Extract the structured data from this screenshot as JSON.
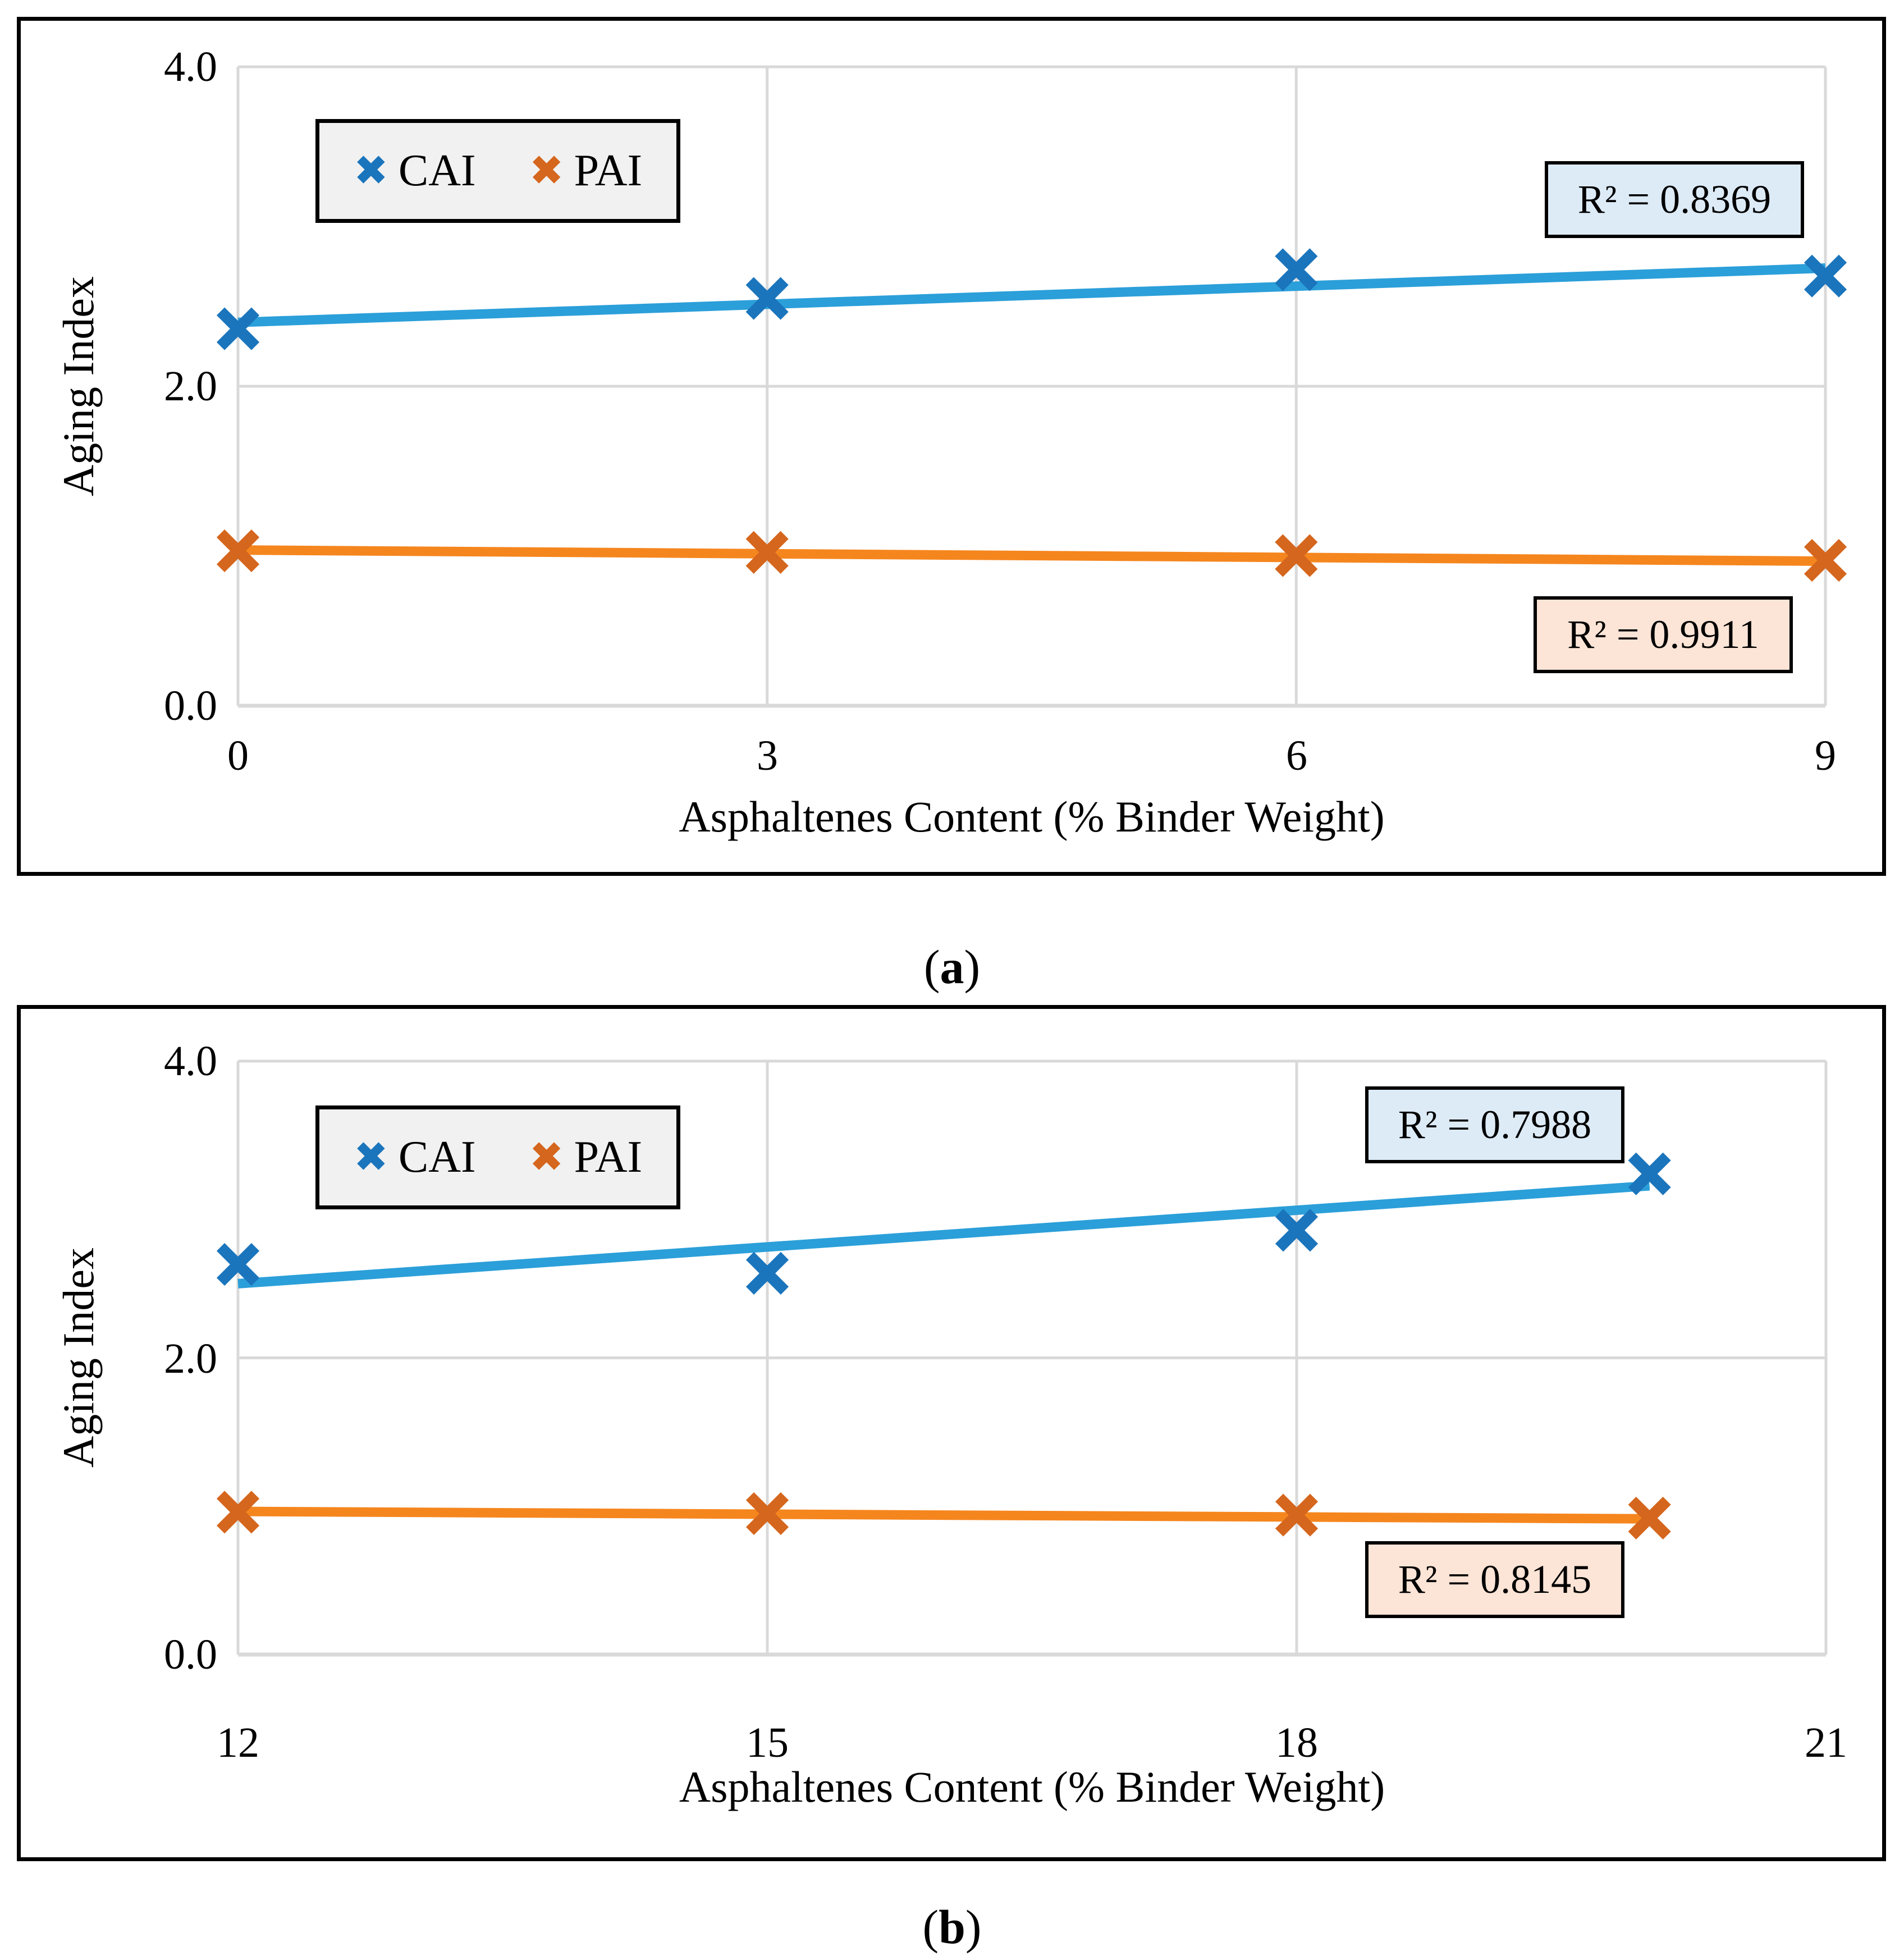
{
  "captions": [
    {
      "open": "(",
      "letter": "a",
      "close": ")"
    },
    {
      "open": "(",
      "letter": "b",
      "close": ")"
    }
  ],
  "chart_data": [
    {
      "id": "a",
      "type": "scatter",
      "title": "",
      "xlabel": "Asphaltenes Content (% Binder Weight)",
      "ylabel": "Aging Index",
      "xlim": [
        0,
        9
      ],
      "ylim": [
        0,
        4
      ],
      "x_ticks": [
        0,
        3,
        6,
        9
      ],
      "x_tick_labels": [
        "0",
        "3",
        "6",
        "9"
      ],
      "y_ticks": [
        0,
        2,
        4
      ],
      "y_tick_labels": [
        "0.0",
        "2.0",
        "4.0"
      ],
      "grid": "on",
      "gridline_color": "#D9D9D9",
      "legend": {
        "position": "top-left-inside",
        "icon": "✖",
        "items": [
          {
            "label": "CAI",
            "color": "#1B75BC"
          },
          {
            "label": "PAI",
            "color": "#D5661D"
          }
        ]
      },
      "series": [
        {
          "name": "CAI",
          "marker": "x",
          "marker_color": "#1B75BC",
          "line_color": "#2B9FD9",
          "x": [
            0,
            3,
            6,
            9
          ],
          "y": [
            2.36,
            2.55,
            2.73,
            2.69
          ],
          "trend": {
            "x": [
              0,
              9
            ],
            "y": [
              2.4,
              2.74
            ]
          },
          "r2_value": 0.8369,
          "r2_label": "R² = 0.8369",
          "r2_box_color": "#DDEBF7"
        },
        {
          "name": "PAI",
          "marker": "x",
          "marker_color": "#D5661D",
          "line_color": "#F5861E",
          "x": [
            0,
            3,
            6,
            9
          ],
          "y": [
            0.97,
            0.96,
            0.94,
            0.91
          ],
          "trend": {
            "x": [
              0,
              9
            ],
            "y": [
              0.975,
              0.905
            ]
          },
          "r2_value": 0.9911,
          "r2_label": "R² = 0.9911",
          "r2_box_color": "#FCE4D6"
        }
      ]
    },
    {
      "id": "b",
      "type": "scatter",
      "title": "",
      "xlabel": "Asphaltenes Content (% Binder Weight)",
      "ylabel": "Aging Index",
      "xlim": [
        12,
        21
      ],
      "ylim": [
        0,
        4
      ],
      "x_ticks": [
        12,
        15,
        18,
        21
      ],
      "x_tick_labels": [
        "12",
        "15",
        "18",
        "21"
      ],
      "y_ticks": [
        0,
        2,
        4
      ],
      "y_tick_labels": [
        "0.0",
        "2.0",
        "4.0"
      ],
      "grid": "on",
      "gridline_color": "#D9D9D9",
      "legend": {
        "position": "top-left-inside",
        "icon": "✖",
        "items": [
          {
            "label": "CAI",
            "color": "#1B75BC"
          },
          {
            "label": "PAI",
            "color": "#D5661D"
          }
        ]
      },
      "series": [
        {
          "name": "CAI",
          "marker": "x",
          "marker_color": "#1B75BC",
          "line_color": "#2B9FD9",
          "x": [
            12,
            15,
            18,
            20
          ],
          "y": [
            2.63,
            2.57,
            2.86,
            3.24
          ],
          "trend": {
            "x": [
              12,
              20
            ],
            "y": [
              2.5,
              3.16
            ]
          },
          "r2_value": 0.7988,
          "r2_label": "R² = 0.7988",
          "r2_box_color": "#DDEBF7"
        },
        {
          "name": "PAI",
          "marker": "x",
          "marker_color": "#D5661D",
          "line_color": "#F5861E",
          "x": [
            12,
            15,
            18,
            20
          ],
          "y": [
            0.96,
            0.95,
            0.94,
            0.92
          ],
          "trend": {
            "x": [
              12,
              20
            ],
            "y": [
              0.965,
              0.915
            ]
          },
          "r2_value": 0.8145,
          "r2_label": "R² = 0.8145",
          "r2_box_color": "#FCE4D6"
        }
      ]
    }
  ]
}
